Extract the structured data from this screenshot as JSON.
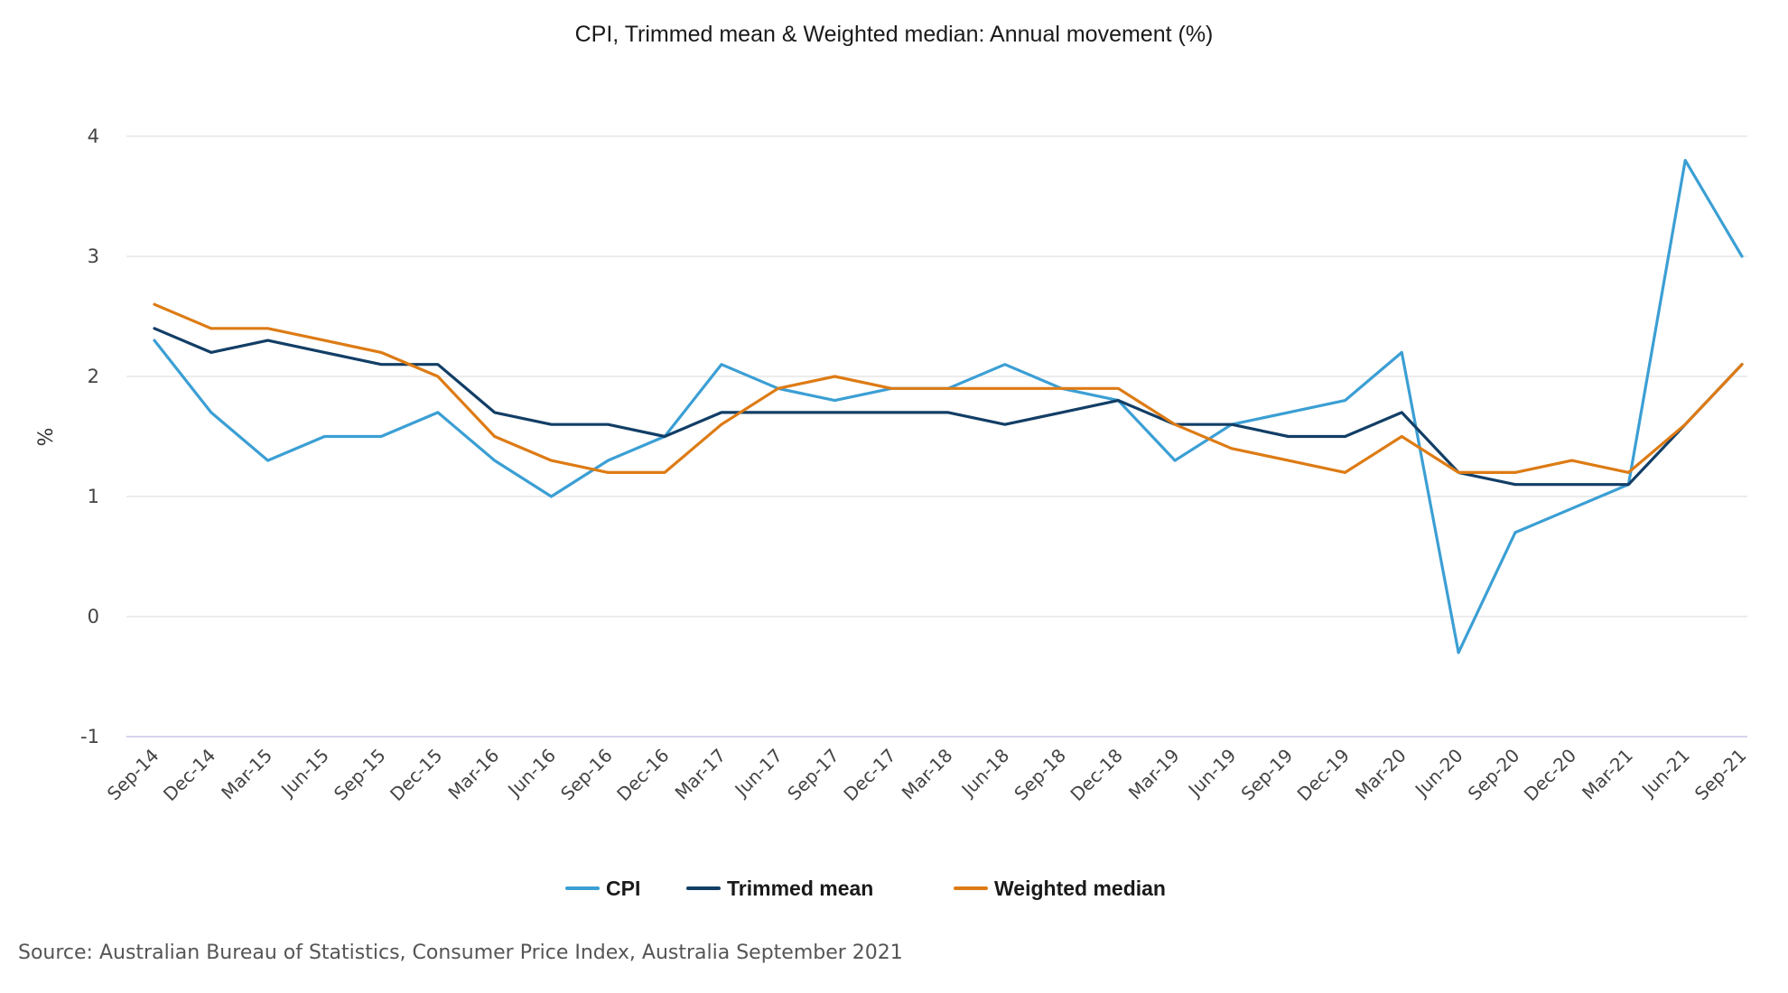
{
  "chart_data": {
    "type": "line",
    "title": "CPI, Trimmed mean & Weighted median: Annual movement (%)",
    "xlabel": "",
    "ylabel": "%",
    "ylim": [
      -1,
      4
    ],
    "yticks": [
      -1,
      0,
      1,
      2,
      3,
      4
    ],
    "grid": true,
    "legend_position": "bottom",
    "categories": [
      "Sep-14",
      "Dec-14",
      "Mar-15",
      "Jun-15",
      "Sep-15",
      "Dec-15",
      "Mar-16",
      "Jun-16",
      "Sep-16",
      "Dec-16",
      "Mar-17",
      "Jun-17",
      "Sep-17",
      "Dec-17",
      "Mar-18",
      "Jun-18",
      "Sep-18",
      "Dec-18",
      "Mar-19",
      "Jun-19",
      "Sep-19",
      "Dec-19",
      "Mar-20",
      "Jun-20",
      "Sep-20",
      "Dec-20",
      "Mar-21",
      "Jun-21",
      "Sep-21"
    ],
    "series": [
      {
        "name": "CPI",
        "color": "#3b9fd4",
        "values": [
          2.3,
          1.7,
          1.3,
          1.5,
          1.5,
          1.7,
          1.3,
          1.0,
          1.3,
          1.5,
          2.1,
          1.9,
          1.8,
          1.9,
          1.9,
          2.1,
          1.9,
          1.8,
          1.3,
          1.6,
          1.7,
          1.8,
          2.2,
          -0.3,
          0.7,
          0.9,
          1.1,
          3.8,
          3.0
        ]
      },
      {
        "name": "Trimmed mean",
        "color": "#123e66",
        "values": [
          2.4,
          2.2,
          2.3,
          2.2,
          2.1,
          2.1,
          1.7,
          1.6,
          1.6,
          1.5,
          1.7,
          1.7,
          1.7,
          1.7,
          1.7,
          1.6,
          1.7,
          1.8,
          1.6,
          1.6,
          1.5,
          1.5,
          1.7,
          1.2,
          1.1,
          1.1,
          1.1,
          1.6,
          2.1
        ]
      },
      {
        "name": "Weighted median",
        "color": "#dd7b14",
        "values": [
          2.6,
          2.4,
          2.4,
          2.3,
          2.2,
          2.0,
          1.5,
          1.3,
          1.2,
          1.2,
          1.6,
          1.9,
          2.0,
          1.9,
          1.9,
          1.9,
          1.9,
          1.9,
          1.6,
          1.4,
          1.3,
          1.2,
          1.5,
          1.2,
          1.2,
          1.3,
          1.2,
          1.6,
          2.1
        ]
      }
    ]
  },
  "footer": {
    "source": "Source: Australian Bureau of Statistics, Consumer Price Index, Australia September 2021"
  }
}
